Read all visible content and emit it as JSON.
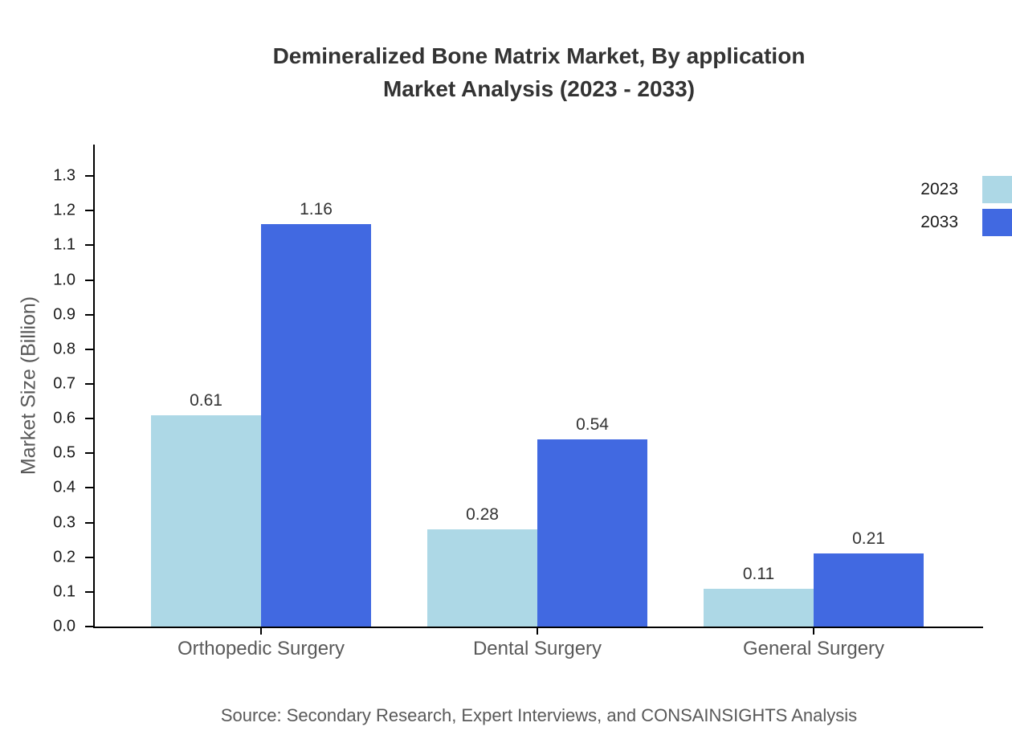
{
  "title": {
    "line1": "Demineralized Bone Matrix Market, By application",
    "line2": "Market Analysis (2023 - 2033)"
  },
  "source": "Source: Secondary Research, Expert Interviews, and CONSAINSIGHTS Analysis",
  "chart_data": {
    "type": "bar",
    "title": "Demineralized Bone Matrix Market, By application Market Analysis (2023 - 2033)",
    "categories": [
      "Orthopedic Surgery",
      "Dental Surgery",
      "General Surgery"
    ],
    "series": [
      {
        "name": "2023",
        "color": "#ADD8E6",
        "values": [
          0.61,
          0.28,
          0.11
        ]
      },
      {
        "name": "2033",
        "color": "#4169E1",
        "values": [
          1.16,
          0.54,
          0.21
        ]
      }
    ],
    "xlabel": "",
    "ylabel": "Market Size (Billion)",
    "yticks": [
      0.0,
      0.1,
      0.2,
      0.3,
      0.4,
      0.5,
      0.6,
      0.7,
      0.8,
      0.9,
      1.0,
      1.1,
      1.2,
      1.3
    ],
    "ylim": [
      0,
      1.39
    ],
    "grid": false,
    "value_labels": true,
    "legend_position": "upper-right-outside",
    "colors": {
      "axis": "#000000",
      "tick_text": "#1a1a1a",
      "category_text": "#595959",
      "title_text": "#333333",
      "background": "#ffffff"
    }
  }
}
